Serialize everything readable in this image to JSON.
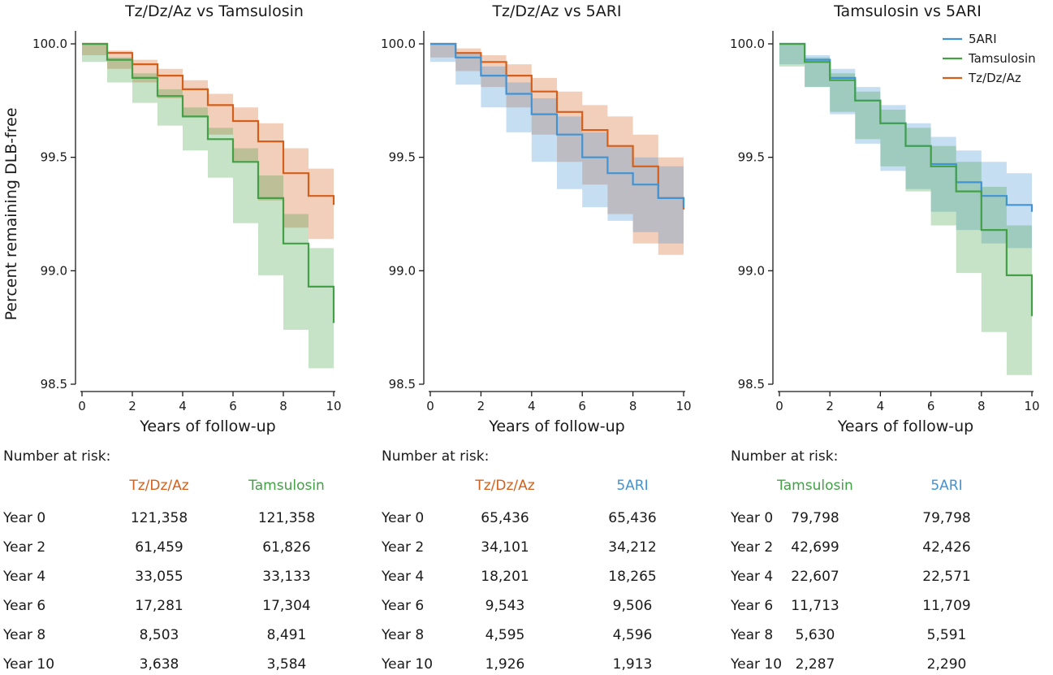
{
  "colors": {
    "Tz/Dz/Az": "#d45f1a",
    "Tamsulosin": "#43a047",
    "5ARI": "#4193d4",
    "axis": "#1a1a1a"
  },
  "chart_data": [
    {
      "type": "line",
      "title": "Tz/Dz/Az vs Tamsulosin",
      "xlabel": "Years of follow-up",
      "ylabel": "Percent remaining DLB-free",
      "xlim": [
        0,
        10
      ],
      "ylim": [
        98.5,
        100.0
      ],
      "xticks": [
        "0",
        "2",
        "4",
        "6",
        "8",
        "10"
      ],
      "yticks": [
        "98.5",
        "99.0",
        "99.5",
        "100.0"
      ],
      "legend": null,
      "series": [
        {
          "name": "Tz/Dz/Az",
          "x": [
            0,
            1,
            2,
            3,
            4,
            5,
            6,
            7,
            8,
            9,
            10
          ],
          "y": [
            100.0,
            99.96,
            99.91,
            99.86,
            99.8,
            99.73,
            99.66,
            99.57,
            99.43,
            99.33,
            99.29
          ],
          "ci_low": [
            100.0,
            99.95,
            99.89,
            99.83,
            99.76,
            99.68,
            99.6,
            99.48,
            99.31,
            99.19,
            99.14
          ],
          "ci_high": [
            100.0,
            99.97,
            99.93,
            99.89,
            99.84,
            99.78,
            99.72,
            99.65,
            99.54,
            99.45,
            99.44
          ]
        },
        {
          "name": "Tamsulosin",
          "x": [
            0,
            1,
            2,
            3,
            4,
            5,
            6,
            7,
            8,
            9,
            10
          ],
          "y": [
            100.0,
            99.93,
            99.85,
            99.77,
            99.68,
            99.58,
            99.48,
            99.32,
            99.12,
            98.93,
            98.77
          ],
          "ci_low": [
            100.0,
            99.92,
            99.83,
            99.74,
            99.64,
            99.53,
            99.41,
            99.21,
            98.98,
            98.74,
            98.57
          ],
          "ci_high": [
            100.0,
            99.94,
            99.87,
            99.8,
            99.72,
            99.63,
            99.54,
            99.42,
            99.25,
            99.1,
            98.97
          ]
        }
      ]
    },
    {
      "type": "line",
      "title": "Tz/Dz/Az vs 5ARI",
      "xlabel": "Years of follow-up",
      "ylabel": "",
      "xlim": [
        0,
        10
      ],
      "ylim": [
        98.5,
        100.0
      ],
      "xticks": [
        "0",
        "2",
        "4",
        "6",
        "8",
        "10"
      ],
      "yticks": [
        "98.5",
        "99.0",
        "99.5",
        "100.0"
      ],
      "legend": null,
      "series": [
        {
          "name": "Tz/Dz/Az",
          "x": [
            0,
            1,
            2,
            3,
            4,
            5,
            6,
            7,
            8,
            9,
            10
          ],
          "y": [
            100.0,
            99.96,
            99.92,
            99.86,
            99.79,
            99.7,
            99.62,
            99.55,
            99.46,
            99.32,
            99.27
          ],
          "ci_low": [
            100.0,
            99.94,
            99.88,
            99.81,
            99.72,
            99.6,
            99.48,
            99.38,
            99.25,
            99.12,
            99.07
          ],
          "ci_high": [
            100.0,
            99.98,
            99.95,
            99.91,
            99.85,
            99.79,
            99.73,
            99.68,
            99.6,
            99.5,
            99.46
          ]
        },
        {
          "name": "5ARI",
          "x": [
            0,
            1,
            2,
            3,
            4,
            5,
            6,
            7,
            8,
            9,
            10
          ],
          "y": [
            100.0,
            99.94,
            99.86,
            99.78,
            99.69,
            99.6,
            99.5,
            99.43,
            99.38,
            99.32,
            99.28
          ],
          "ci_low": [
            100.0,
            99.92,
            99.82,
            99.72,
            99.61,
            99.48,
            99.36,
            99.28,
            99.22,
            99.17,
            99.12
          ],
          "ci_high": [
            100.0,
            99.96,
            99.9,
            99.83,
            99.76,
            99.68,
            99.61,
            99.55,
            99.5,
            99.46,
            99.43
          ]
        }
      ]
    },
    {
      "type": "line",
      "title": "Tamsulosin vs 5ARI",
      "xlabel": "Years of follow-up",
      "ylabel": "",
      "xlim": [
        0,
        10
      ],
      "ylim": [
        98.5,
        100.0
      ],
      "xticks": [
        "0",
        "2",
        "4",
        "6",
        "8",
        "10"
      ],
      "yticks": [
        "98.5",
        "99.0",
        "99.5",
        "100.0"
      ],
      "legend": [
        "5ARI",
        "Tamsulosin",
        "Tz/Dz/Az"
      ],
      "series": [
        {
          "name": "5ARI",
          "x": [
            0,
            1,
            2,
            3,
            4,
            5,
            6,
            7,
            8,
            9,
            10
          ],
          "y": [
            100.0,
            99.93,
            99.85,
            99.75,
            99.65,
            99.55,
            99.47,
            99.39,
            99.33,
            99.29,
            99.26
          ],
          "ci_low": [
            100.0,
            99.91,
            99.81,
            99.69,
            99.56,
            99.44,
            99.36,
            99.26,
            99.18,
            99.12,
            99.1
          ],
          "ci_high": [
            100.0,
            99.95,
            99.89,
            99.81,
            99.73,
            99.65,
            99.59,
            99.53,
            99.48,
            99.43,
            99.41
          ]
        },
        {
          "name": "Tamsulosin",
          "x": [
            0,
            1,
            2,
            3,
            4,
            5,
            6,
            7,
            8,
            9,
            10
          ],
          "y": [
            100.0,
            99.92,
            99.84,
            99.75,
            99.65,
            99.55,
            99.46,
            99.35,
            99.18,
            98.98,
            98.8
          ],
          "ci_low": [
            100.0,
            99.9,
            99.81,
            99.7,
            99.58,
            99.46,
            99.35,
            99.2,
            98.99,
            98.73,
            98.54
          ],
          "ci_high": [
            100.0,
            99.94,
            99.87,
            99.79,
            99.71,
            99.63,
            99.55,
            99.48,
            99.37,
            99.2,
            99.05
          ]
        }
      ]
    }
  ],
  "risk_tables": [
    {
      "heading": "Number at risk:",
      "columns": [
        {
          "name": "Tz/Dz/Az",
          "values": [
            "121,358",
            "61,459",
            "33,055",
            "17,281",
            "8,503",
            "3,638"
          ]
        },
        {
          "name": "Tamsulosin",
          "values": [
            "121,358",
            "61,826",
            "33,133",
            "17,304",
            "8,491",
            "3,584"
          ]
        }
      ],
      "rows": [
        "Year 0",
        "Year 2",
        "Year 4",
        "Year 6",
        "Year 8",
        "Year 10"
      ]
    },
    {
      "heading": "Number at risk:",
      "columns": [
        {
          "name": "Tz/Dz/Az",
          "values": [
            "65,436",
            "34,101",
            "18,201",
            "9,543",
            "4,595",
            "1,926"
          ]
        },
        {
          "name": "5ARI",
          "values": [
            "65,436",
            "34,212",
            "18,265",
            "9,506",
            "4,596",
            "1,913"
          ]
        }
      ],
      "rows": [
        "Year 0",
        "Year 2",
        "Year 4",
        "Year 6",
        "Year 8",
        "Year 10"
      ]
    },
    {
      "heading": "Number at risk:",
      "columns": [
        {
          "name": "Tamsulosin",
          "values": [
            "79,798",
            "42,699",
            "22,607",
            "11,713",
            "5,630",
            "2,287"
          ]
        },
        {
          "name": "5ARI",
          "values": [
            "79,798",
            "42,426",
            "22,571",
            "11,709",
            "5,591",
            "2,290"
          ]
        }
      ],
      "rows": [
        "Year 0",
        "Year 2",
        "Year 4",
        "Year 6",
        "Year 8",
        "Year 10"
      ]
    }
  ]
}
